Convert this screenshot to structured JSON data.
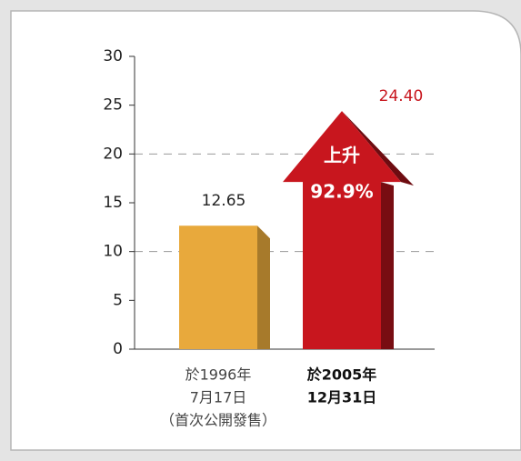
{
  "chart_data": {
    "type": "bar",
    "categories": [
      [
        "於1996年",
        "7月17日",
        "（首次公開發售）"
      ],
      [
        "於2005年",
        "12月31日"
      ]
    ],
    "values": [
      12.65,
      24.4
    ],
    "value_labels": [
      "12.65",
      "24.40"
    ],
    "colors": [
      "#e8a93c",
      "#c8161e"
    ],
    "label_colors": [
      "#222222",
      "#c8161e"
    ],
    "bold_categories": [
      false,
      true
    ],
    "arrow": [
      false,
      true
    ],
    "annotation": [
      "上升",
      "92.9%"
    ],
    "ylim": [
      0,
      30
    ],
    "yticks": [
      0,
      5,
      10,
      15,
      20,
      25,
      30
    ],
    "grid_lines": [
      10,
      20
    ]
  }
}
